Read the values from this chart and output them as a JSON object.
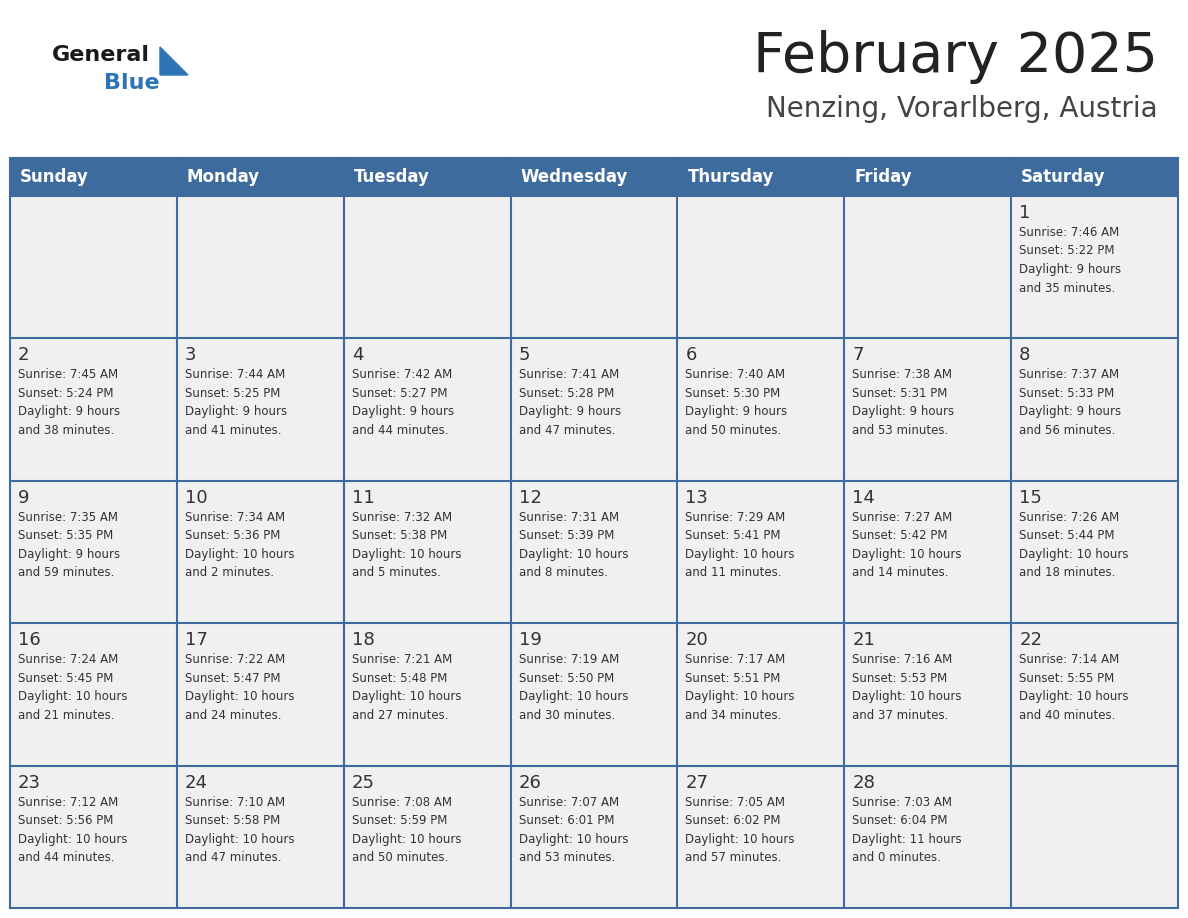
{
  "title": "February 2025",
  "subtitle": "Nenzing, Vorarlberg, Austria",
  "days_of_week": [
    "Sunday",
    "Monday",
    "Tuesday",
    "Wednesday",
    "Thursday",
    "Friday",
    "Saturday"
  ],
  "header_bg": "#3d6b9e",
  "header_text": "#ffffff",
  "cell_bg": "#f0f0f0",
  "cell_border_color": "#3d6b9e",
  "day_number_color": "#333333",
  "info_color": "#333333",
  "title_color": "#222222",
  "subtitle_color": "#444444",
  "logo_general_color": "#1a1a1a",
  "logo_blue_color": "#2e75b6",
  "weeks": [
    [
      {
        "day": null,
        "info": ""
      },
      {
        "day": null,
        "info": ""
      },
      {
        "day": null,
        "info": ""
      },
      {
        "day": null,
        "info": ""
      },
      {
        "day": null,
        "info": ""
      },
      {
        "day": null,
        "info": ""
      },
      {
        "day": 1,
        "info": "Sunrise: 7:46 AM\nSunset: 5:22 PM\nDaylight: 9 hours\nand 35 minutes."
      }
    ],
    [
      {
        "day": 2,
        "info": "Sunrise: 7:45 AM\nSunset: 5:24 PM\nDaylight: 9 hours\nand 38 minutes."
      },
      {
        "day": 3,
        "info": "Sunrise: 7:44 AM\nSunset: 5:25 PM\nDaylight: 9 hours\nand 41 minutes."
      },
      {
        "day": 4,
        "info": "Sunrise: 7:42 AM\nSunset: 5:27 PM\nDaylight: 9 hours\nand 44 minutes."
      },
      {
        "day": 5,
        "info": "Sunrise: 7:41 AM\nSunset: 5:28 PM\nDaylight: 9 hours\nand 47 minutes."
      },
      {
        "day": 6,
        "info": "Sunrise: 7:40 AM\nSunset: 5:30 PM\nDaylight: 9 hours\nand 50 minutes."
      },
      {
        "day": 7,
        "info": "Sunrise: 7:38 AM\nSunset: 5:31 PM\nDaylight: 9 hours\nand 53 minutes."
      },
      {
        "day": 8,
        "info": "Sunrise: 7:37 AM\nSunset: 5:33 PM\nDaylight: 9 hours\nand 56 minutes."
      }
    ],
    [
      {
        "day": 9,
        "info": "Sunrise: 7:35 AM\nSunset: 5:35 PM\nDaylight: 9 hours\nand 59 minutes."
      },
      {
        "day": 10,
        "info": "Sunrise: 7:34 AM\nSunset: 5:36 PM\nDaylight: 10 hours\nand 2 minutes."
      },
      {
        "day": 11,
        "info": "Sunrise: 7:32 AM\nSunset: 5:38 PM\nDaylight: 10 hours\nand 5 minutes."
      },
      {
        "day": 12,
        "info": "Sunrise: 7:31 AM\nSunset: 5:39 PM\nDaylight: 10 hours\nand 8 minutes."
      },
      {
        "day": 13,
        "info": "Sunrise: 7:29 AM\nSunset: 5:41 PM\nDaylight: 10 hours\nand 11 minutes."
      },
      {
        "day": 14,
        "info": "Sunrise: 7:27 AM\nSunset: 5:42 PM\nDaylight: 10 hours\nand 14 minutes."
      },
      {
        "day": 15,
        "info": "Sunrise: 7:26 AM\nSunset: 5:44 PM\nDaylight: 10 hours\nand 18 minutes."
      }
    ],
    [
      {
        "day": 16,
        "info": "Sunrise: 7:24 AM\nSunset: 5:45 PM\nDaylight: 10 hours\nand 21 minutes."
      },
      {
        "day": 17,
        "info": "Sunrise: 7:22 AM\nSunset: 5:47 PM\nDaylight: 10 hours\nand 24 minutes."
      },
      {
        "day": 18,
        "info": "Sunrise: 7:21 AM\nSunset: 5:48 PM\nDaylight: 10 hours\nand 27 minutes."
      },
      {
        "day": 19,
        "info": "Sunrise: 7:19 AM\nSunset: 5:50 PM\nDaylight: 10 hours\nand 30 minutes."
      },
      {
        "day": 20,
        "info": "Sunrise: 7:17 AM\nSunset: 5:51 PM\nDaylight: 10 hours\nand 34 minutes."
      },
      {
        "day": 21,
        "info": "Sunrise: 7:16 AM\nSunset: 5:53 PM\nDaylight: 10 hours\nand 37 minutes."
      },
      {
        "day": 22,
        "info": "Sunrise: 7:14 AM\nSunset: 5:55 PM\nDaylight: 10 hours\nand 40 minutes."
      }
    ],
    [
      {
        "day": 23,
        "info": "Sunrise: 7:12 AM\nSunset: 5:56 PM\nDaylight: 10 hours\nand 44 minutes."
      },
      {
        "day": 24,
        "info": "Sunrise: 7:10 AM\nSunset: 5:58 PM\nDaylight: 10 hours\nand 47 minutes."
      },
      {
        "day": 25,
        "info": "Sunrise: 7:08 AM\nSunset: 5:59 PM\nDaylight: 10 hours\nand 50 minutes."
      },
      {
        "day": 26,
        "info": "Sunrise: 7:07 AM\nSunset: 6:01 PM\nDaylight: 10 hours\nand 53 minutes."
      },
      {
        "day": 27,
        "info": "Sunrise: 7:05 AM\nSunset: 6:02 PM\nDaylight: 10 hours\nand 57 minutes."
      },
      {
        "day": 28,
        "info": "Sunrise: 7:03 AM\nSunset: 6:04 PM\nDaylight: 11 hours\nand 0 minutes."
      },
      {
        "day": null,
        "info": ""
      }
    ]
  ]
}
